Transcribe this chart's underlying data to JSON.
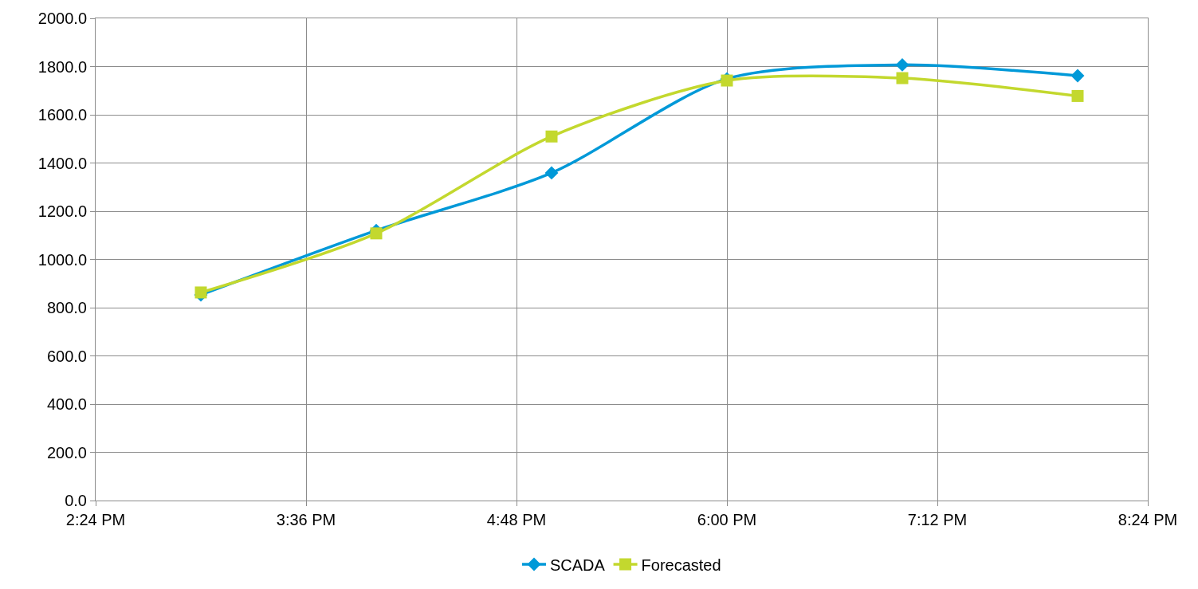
{
  "chart_data": {
    "type": "line",
    "x": [
      15.0,
      16.0,
      17.0,
      18.0,
      19.0,
      20.0
    ],
    "series": [
      {
        "name": "SCADA",
        "color": "#0099d8",
        "marker": "diamond",
        "values": [
          853,
          1120,
          1359,
          1749,
          1807,
          1762
        ]
      },
      {
        "name": "Forecasted",
        "color": "#c3d82e",
        "marker": "square",
        "values": [
          863,
          1108,
          1510,
          1742,
          1752,
          1678
        ]
      }
    ],
    "xlim": [
      14.4,
      20.4
    ],
    "xticks": [
      {
        "value": 14.4,
        "label": "2:24 PM"
      },
      {
        "value": 15.6,
        "label": "3:36 PM"
      },
      {
        "value": 16.8,
        "label": "4:48 PM"
      },
      {
        "value": 18.0,
        "label": "6:00 PM"
      },
      {
        "value": 19.2,
        "label": "7:12 PM"
      },
      {
        "value": 20.4,
        "label": "8:24 PM"
      }
    ],
    "ylim": [
      0,
      2000
    ],
    "yticks": [
      {
        "value": 0,
        "label": "0.0"
      },
      {
        "value": 200,
        "label": "200.0"
      },
      {
        "value": 400,
        "label": "400.0"
      },
      {
        "value": 600,
        "label": "600.0"
      },
      {
        "value": 800,
        "label": "800.0"
      },
      {
        "value": 1000,
        "label": "1000.0"
      },
      {
        "value": 1200,
        "label": "1200.0"
      },
      {
        "value": 1400,
        "label": "1400.0"
      },
      {
        "value": 1600,
        "label": "1600.0"
      },
      {
        "value": 1800,
        "label": "1800.0"
      },
      {
        "value": 2000,
        "label": "2000.0"
      }
    ],
    "grid": true,
    "legend": "bottom",
    "line_style": "solid"
  }
}
